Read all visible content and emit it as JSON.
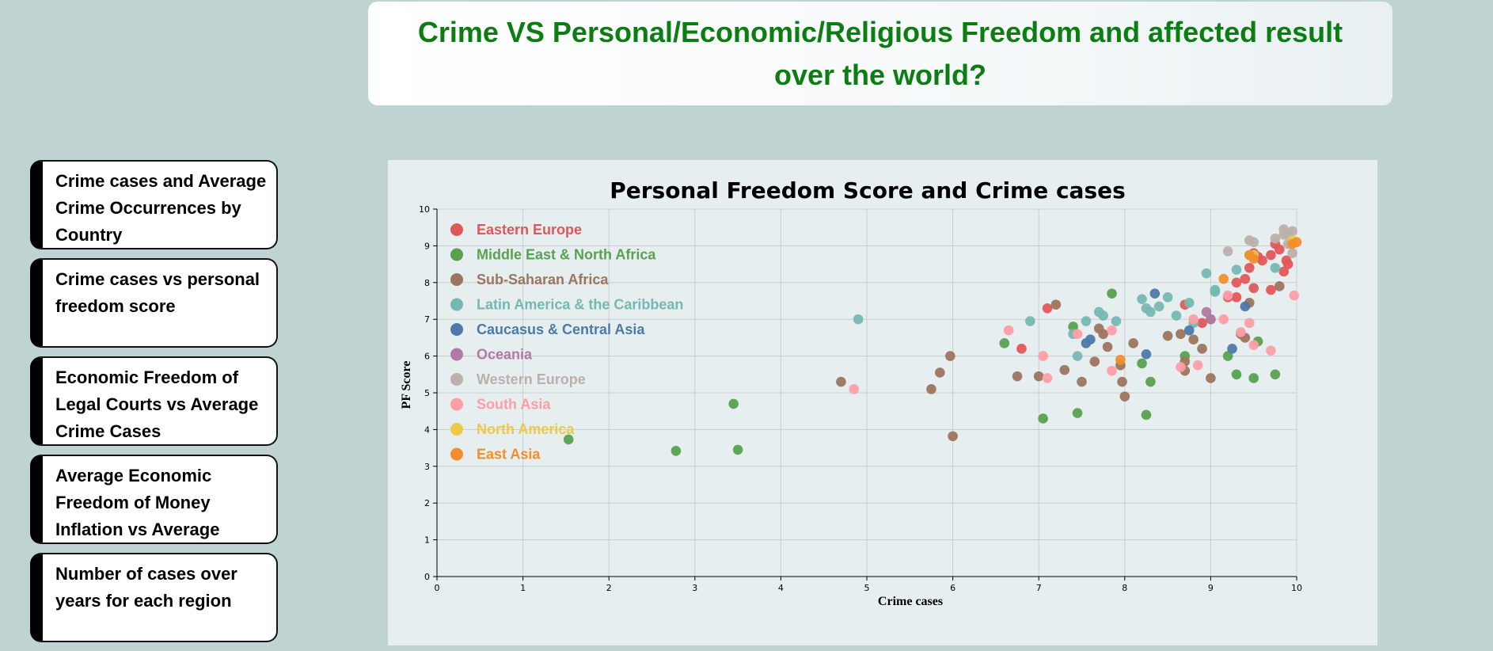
{
  "header": {
    "title": "Crime VS Personal/Economic/Religious Freedom and affected result over the world?"
  },
  "sidebar": {
    "items": [
      {
        "label": "Crime cases and Average Crime Occurrences by Country"
      },
      {
        "label": "Crime cases vs personal freedom score"
      },
      {
        "label": "Economic Freedom of Legal Courts vs Average Crime Cases"
      },
      {
        "label": "Average Economic Freedom of Money Inflation vs Average"
      },
      {
        "label": "Number of cases over years for each region"
      }
    ]
  },
  "chart_data": {
    "type": "scatter",
    "title": "Personal Freedom Score and Crime cases",
    "xlabel": "Crime cases",
    "ylabel": "PF Score",
    "xlim": [
      0,
      10
    ],
    "ylim": [
      0,
      10
    ],
    "xticks": [
      "0",
      "1",
      "2",
      "3",
      "4",
      "5",
      "6",
      "7",
      "8",
      "9",
      "10"
    ],
    "yticks": [
      "0",
      "1",
      "2",
      "3",
      "4",
      "5",
      "6",
      "7",
      "8",
      "9",
      "10"
    ],
    "grid": true,
    "legend_position": "top-left",
    "series": [
      {
        "name": "Eastern Europe",
        "color": "#e15759",
        "points": [
          [
            7.1,
            7.3
          ],
          [
            6.8,
            6.2
          ],
          [
            8.7,
            7.4
          ],
          [
            8.9,
            6.9
          ],
          [
            9.2,
            7.6
          ],
          [
            9.3,
            8.0
          ],
          [
            9.4,
            8.1
          ],
          [
            9.45,
            8.4
          ],
          [
            9.5,
            8.8
          ],
          [
            9.55,
            8.7
          ],
          [
            9.6,
            8.6
          ],
          [
            9.7,
            8.75
          ],
          [
            9.75,
            9.05
          ],
          [
            9.8,
            8.9
          ],
          [
            9.85,
            8.3
          ],
          [
            9.88,
            8.6
          ],
          [
            9.9,
            8.5
          ],
          [
            9.7,
            7.8
          ],
          [
            9.5,
            7.85
          ],
          [
            9.3,
            7.6
          ]
        ]
      },
      {
        "name": "Middle East & North Africa",
        "color": "#59a14f",
        "points": [
          [
            1.53,
            3.73
          ],
          [
            2.78,
            3.42
          ],
          [
            3.45,
            4.7
          ],
          [
            3.5,
            3.45
          ],
          [
            6.6,
            6.35
          ],
          [
            7.05,
            4.3
          ],
          [
            7.4,
            6.8
          ],
          [
            7.45,
            4.45
          ],
          [
            7.85,
            7.7
          ],
          [
            8.2,
            5.8
          ],
          [
            8.25,
            4.4
          ],
          [
            8.3,
            5.3
          ],
          [
            8.7,
            6.0
          ],
          [
            9.2,
            6.0
          ],
          [
            9.3,
            5.5
          ],
          [
            9.5,
            5.4
          ],
          [
            9.55,
            6.4
          ],
          [
            9.75,
            5.5
          ]
        ]
      },
      {
        "name": "Sub-Saharan Africa",
        "color": "#9c755f",
        "points": [
          [
            4.7,
            5.3
          ],
          [
            5.75,
            5.1
          ],
          [
            5.85,
            5.55
          ],
          [
            5.97,
            6.0
          ],
          [
            6.0,
            3.82
          ],
          [
            6.75,
            5.45
          ],
          [
            7.0,
            5.45
          ],
          [
            7.2,
            7.4
          ],
          [
            7.3,
            5.62
          ],
          [
            7.5,
            5.3
          ],
          [
            7.65,
            5.85
          ],
          [
            7.7,
            6.75
          ],
          [
            7.75,
            6.6
          ],
          [
            7.8,
            6.25
          ],
          [
            7.95,
            5.75
          ],
          [
            7.97,
            5.3
          ],
          [
            8.0,
            4.9
          ],
          [
            8.1,
            6.35
          ],
          [
            8.5,
            6.55
          ],
          [
            8.65,
            6.6
          ],
          [
            8.7,
            5.6
          ],
          [
            8.7,
            5.85
          ],
          [
            8.8,
            6.45
          ],
          [
            8.9,
            6.2
          ],
          [
            9.0,
            5.4
          ],
          [
            9.0,
            7.0
          ],
          [
            9.35,
            6.6
          ],
          [
            9.4,
            6.5
          ],
          [
            9.45,
            7.45
          ],
          [
            9.8,
            7.9
          ]
        ]
      },
      {
        "name": "Latin America & the Caribbean",
        "color": "#76b7b2",
        "points": [
          [
            4.9,
            7.0
          ],
          [
            6.9,
            6.95
          ],
          [
            7.4,
            6.6
          ],
          [
            7.45,
            6.0
          ],
          [
            7.55,
            6.95
          ],
          [
            7.7,
            7.2
          ],
          [
            7.75,
            7.1
          ],
          [
            7.9,
            6.95
          ],
          [
            8.2,
            7.55
          ],
          [
            8.25,
            7.3
          ],
          [
            8.3,
            7.2
          ],
          [
            8.4,
            7.35
          ],
          [
            8.5,
            7.6
          ],
          [
            8.6,
            7.1
          ],
          [
            8.75,
            7.45
          ],
          [
            8.8,
            6.9
          ],
          [
            8.95,
            8.25
          ],
          [
            9.05,
            7.8
          ],
          [
            9.05,
            7.75
          ],
          [
            9.3,
            8.35
          ],
          [
            9.45,
            8.75
          ],
          [
            9.75,
            8.4
          ]
        ]
      },
      {
        "name": "Caucasus & Central Asia",
        "color": "#4e79a7",
        "points": [
          [
            7.55,
            6.35
          ],
          [
            7.6,
            6.45
          ],
          [
            8.25,
            6.05
          ],
          [
            8.35,
            7.7
          ],
          [
            8.75,
            6.7
          ],
          [
            9.25,
            6.2
          ],
          [
            9.4,
            7.35
          ]
        ]
      },
      {
        "name": "Oceania",
        "color": "#b07aa1",
        "points": [
          [
            8.95,
            7.2
          ],
          [
            9.0,
            7.0
          ]
        ]
      },
      {
        "name": "Western Europe",
        "color": "#bab0ac",
        "points": [
          [
            9.2,
            8.85
          ],
          [
            9.45,
            9.15
          ],
          [
            9.5,
            9.1
          ],
          [
            9.75,
            9.2
          ],
          [
            9.85,
            9.45
          ],
          [
            9.9,
            9.3
          ],
          [
            9.95,
            9.4
          ],
          [
            9.9,
            9.05
          ],
          [
            9.95,
            8.8
          ],
          [
            9.85,
            9.3
          ]
        ]
      },
      {
        "name": "South Asia",
        "color": "#ff9da7",
        "points": [
          [
            4.85,
            5.1
          ],
          [
            6.65,
            6.7
          ],
          [
            7.05,
            6.0
          ],
          [
            7.1,
            5.4
          ],
          [
            7.45,
            6.6
          ],
          [
            7.85,
            5.6
          ],
          [
            7.85,
            6.7
          ],
          [
            8.65,
            5.7
          ],
          [
            8.8,
            7.0
          ],
          [
            8.85,
            5.75
          ],
          [
            9.15,
            7.0
          ],
          [
            9.2,
            7.65
          ],
          [
            9.35,
            6.65
          ],
          [
            9.45,
            6.9
          ],
          [
            9.5,
            6.3
          ],
          [
            9.7,
            6.15
          ],
          [
            9.97,
            7.65
          ]
        ]
      },
      {
        "name": "North America",
        "color": "#edc948",
        "points": [
          [
            9.5,
            8.75
          ],
          [
            9.95,
            9.15
          ]
        ]
      },
      {
        "name": "East Asia",
        "color": "#f28e2b",
        "points": [
          [
            7.95,
            5.9
          ],
          [
            9.15,
            8.1
          ],
          [
            9.45,
            8.75
          ],
          [
            9.5,
            8.65
          ],
          [
            9.95,
            9.05
          ],
          [
            10.0,
            9.1
          ]
        ]
      }
    ]
  }
}
